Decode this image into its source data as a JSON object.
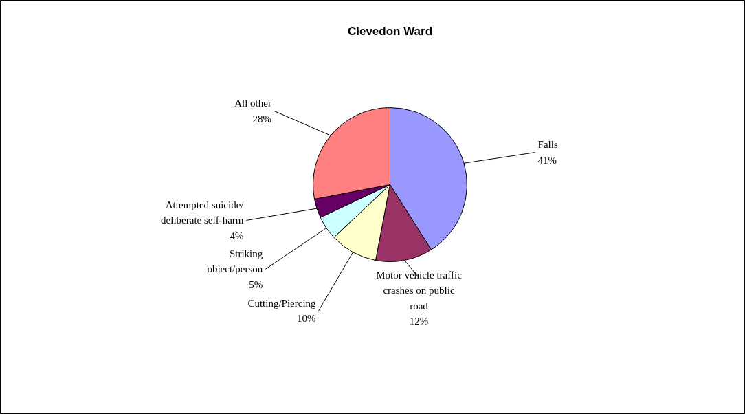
{
  "chart_data": {
    "type": "pie",
    "title": "Clevedon Ward",
    "categories": [
      "Falls",
      "Motor vehicle traffic crashes on public road",
      "Cutting/Piercing",
      "Striking object/person",
      "Attempted suicide/ deliberate self-harm",
      "All other"
    ],
    "values": [
      41,
      12,
      10,
      5,
      4,
      28
    ],
    "value_labels": [
      "41%",
      "12%",
      "10%",
      "5%",
      "4%",
      "28%"
    ],
    "colors": [
      "#9999ff",
      "#993366",
      "#ffffcc",
      "#ccffff",
      "#660066",
      "#ff8080"
    ]
  }
}
